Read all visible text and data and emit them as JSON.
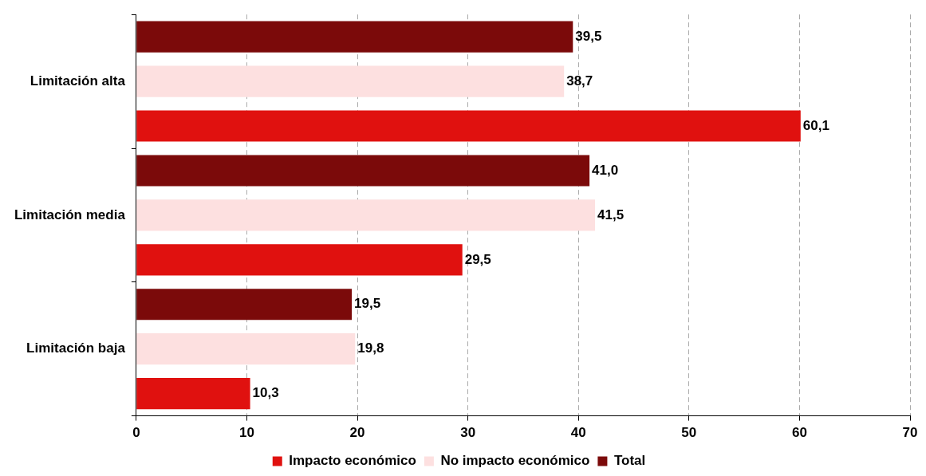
{
  "chart_data": {
    "type": "bar",
    "orientation": "horizontal",
    "categories": [
      "Limitación alta",
      "Limitación media",
      "Limitación baja"
    ],
    "series": [
      {
        "name": "Impacto económico",
        "color": "#e0110f",
        "values": [
          60.1,
          29.5,
          10.3
        ],
        "value_labels": [
          "60,1",
          "29,5",
          "10,3"
        ]
      },
      {
        "name": "No impacto económico",
        "color": "#fde0e0",
        "values": [
          38.7,
          41.5,
          19.8
        ],
        "value_labels": [
          "38,7",
          "41,5",
          "19,8"
        ]
      },
      {
        "name": "Total",
        "color": "#7b0a0a",
        "values": [
          39.5,
          41.0,
          19.5
        ],
        "value_labels": [
          "39,5",
          "41,0",
          "19,5"
        ]
      }
    ],
    "xlim": [
      0,
      70
    ],
    "xticks": [
      0,
      10,
      20,
      30,
      40,
      50,
      60,
      70
    ],
    "grid": "x",
    "legend": "bottom"
  }
}
